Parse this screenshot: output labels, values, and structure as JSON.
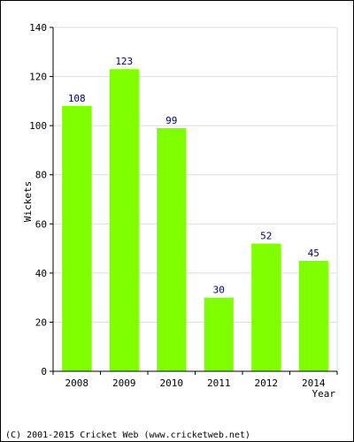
{
  "chart_data": {
    "type": "bar",
    "categories": [
      "2008",
      "2009",
      "2010",
      "2011",
      "2012",
      "2014"
    ],
    "values": [
      108,
      123,
      99,
      30,
      52,
      45
    ],
    "data_labels": [
      "108",
      "123",
      "99",
      "30",
      "52",
      "45"
    ],
    "title": "",
    "xlabel": "Year",
    "ylabel": "Wickets",
    "ylim": [
      0,
      140
    ],
    "yticks": [
      0,
      20,
      40,
      60,
      80,
      100,
      120,
      140
    ],
    "ytick_labels": [
      "0",
      "20",
      "40",
      "60",
      "80",
      "100",
      "120",
      "140"
    ],
    "grid": true,
    "bar_color": "#80ff00",
    "label_color": "#000066",
    "grid_color": "#dddddd"
  },
  "footer": {
    "copyright": "(C) 2001-2015 Cricket Web (www.cricketweb.net)"
  }
}
